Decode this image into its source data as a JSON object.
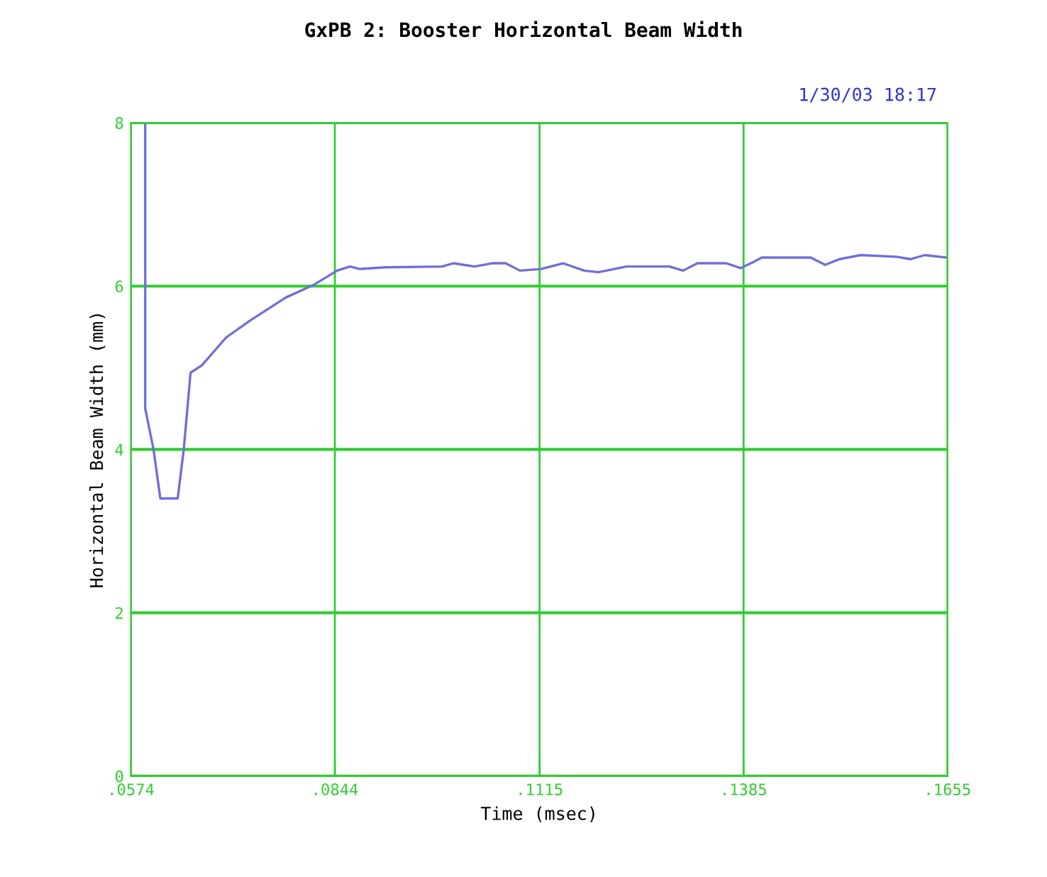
{
  "chart_data": {
    "type": "line",
    "title": "GxPB 2: Booster Horizontal Beam Width",
    "xlabel": "Time (msec)",
    "ylabel": "Horizontal Beam Width (mm)",
    "annotations": [
      "1/30/03 18:17"
    ],
    "xlim": [
      0.0574,
      0.1655
    ],
    "ylim": [
      0,
      8
    ],
    "xticks": [
      {
        "value": 0.0574,
        "label": ".0574"
      },
      {
        "value": 0.0844,
        "label": ".0844"
      },
      {
        "value": 0.1115,
        "label": ".1115"
      },
      {
        "value": 0.1385,
        "label": ".1385"
      },
      {
        "value": 0.1655,
        "label": ".1655"
      }
    ],
    "yticks": [
      0,
      2,
      4,
      6,
      8
    ],
    "grid": true,
    "marker": "none",
    "line_style": "solid",
    "series": [
      {
        "color": "#6f6fd8",
        "x": [
          0.0593,
          0.0593,
          0.0604,
          0.0613,
          0.0636,
          0.0644,
          0.0653,
          0.0668,
          0.07,
          0.0732,
          0.0779,
          0.0817,
          0.0847,
          0.0864,
          0.0877,
          0.0911,
          0.0986,
          0.1001,
          0.1029,
          0.1052,
          0.107,
          0.1089,
          0.1117,
          0.1146,
          0.1174,
          0.1193,
          0.123,
          0.1287,
          0.1305,
          0.1324,
          0.1362,
          0.1381,
          0.1399,
          0.1409,
          0.1474,
          0.1493,
          0.1512,
          0.154,
          0.1587,
          0.1606,
          0.1625,
          0.1653
        ],
        "values": [
          8.0,
          4.5,
          4.0,
          3.4,
          3.4,
          4.0,
          4.94,
          5.03,
          5.37,
          5.58,
          5.86,
          6.02,
          6.19,
          6.24,
          6.21,
          6.23,
          6.24,
          6.28,
          6.24,
          6.28,
          6.28,
          6.19,
          6.21,
          6.28,
          6.19,
          6.17,
          6.24,
          6.24,
          6.19,
          6.28,
          6.28,
          6.22,
          6.3,
          6.35,
          6.35,
          6.26,
          6.33,
          6.38,
          6.36,
          6.33,
          6.38,
          6.35
        ]
      }
    ]
  }
}
